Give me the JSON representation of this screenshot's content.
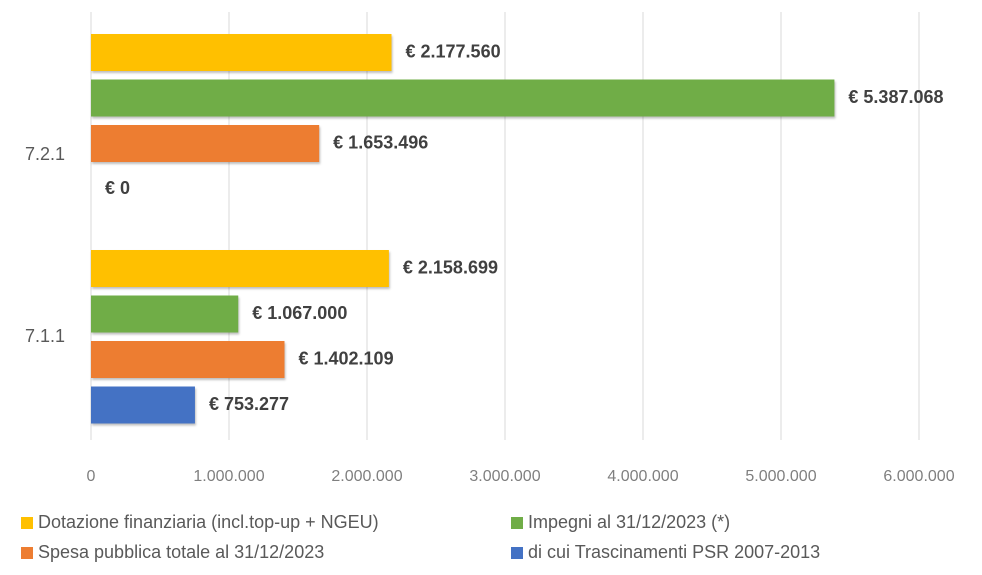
{
  "chart_data": {
    "type": "bar",
    "orientation": "horizontal",
    "categories": [
      "7.2.1",
      "7.1.1"
    ],
    "series": [
      {
        "name": "Dotazione finanziaria (incl.top-up + NGEU)",
        "color": "#ffc000",
        "values": [
          2177560,
          2158699
        ],
        "value_labels": [
          "€ 2.177.560",
          "€ 2.158.699"
        ]
      },
      {
        "name": "Impegni al 31/12/2023 (*)",
        "color": "#70ad47",
        "values": [
          5387068,
          1067000
        ],
        "value_labels": [
          "€ 5.387.068",
          "€ 1.067.000"
        ]
      },
      {
        "name": "Spesa pubblica totale al 31/12/2023",
        "color": "#ed7d31",
        "values": [
          1653496,
          1402109
        ],
        "value_labels": [
          "€ 1.653.496",
          "€ 1.402.109"
        ]
      },
      {
        "name": "di cui Trascinamenti PSR 2007-2013",
        "color": "#4472c4",
        "values": [
          0,
          753277
        ],
        "value_labels": [
          "€ 0",
          "€ 753.277"
        ]
      }
    ],
    "xlim": [
      0,
      6000000
    ],
    "xticks": [
      0,
      {
        "value": 1000000,
        "label": "1.000.000"
      },
      {
        "value": 2000000,
        "label": "2.000.000"
      },
      {
        "value": 3000000,
        "label": "3.000.000"
      },
      {
        "value": 4000000,
        "label": "4.000.000"
      },
      {
        "value": 5000000,
        "label": "5.000.000"
      },
      {
        "value": 6000000,
        "label": "6.000.000"
      }
    ],
    "grid": true,
    "legend": "bottom"
  }
}
